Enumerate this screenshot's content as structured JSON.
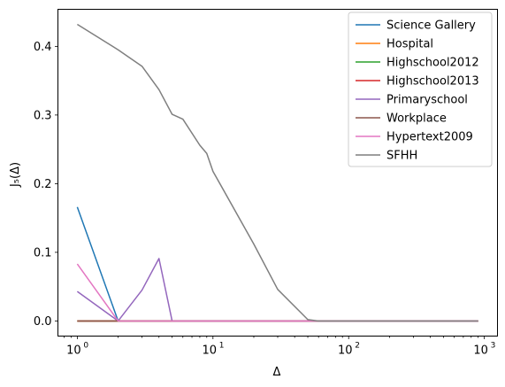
{
  "chart_data": {
    "type": "line",
    "xscale": "log",
    "xlim": [
      0.72,
      1250
    ],
    "ylim": [
      -0.022,
      0.454
    ],
    "xlabel": "Δ",
    "ylabel": "J₅(Δ)",
    "legend_position": "top-right",
    "grid": false,
    "x_ticks": [
      {
        "value": 1,
        "label": "10",
        "exp": "0"
      },
      {
        "value": 10,
        "label": "10",
        "exp": "1"
      },
      {
        "value": 100,
        "label": "10",
        "exp": "2"
      },
      {
        "value": 1000,
        "label": "10",
        "exp": "3"
      }
    ],
    "y_ticks": [
      {
        "value": 0.0,
        "label": "0.0"
      },
      {
        "value": 0.1,
        "label": "0.1"
      },
      {
        "value": 0.2,
        "label": "0.2"
      },
      {
        "value": 0.3,
        "label": "0.3"
      },
      {
        "value": 0.4,
        "label": "0.4"
      }
    ],
    "series": [
      {
        "name": "Science Gallery",
        "color": "#1f77b4",
        "x": [
          1,
          2,
          3,
          4,
          5,
          10,
          50,
          100,
          900
        ],
        "y": [
          0.166,
          0.0,
          0.0,
          0.0,
          0.0,
          0.0,
          0.0,
          0.0,
          0.0
        ]
      },
      {
        "name": "Hospital",
        "color": "#ff7f0e",
        "x": [
          1,
          2,
          5,
          10,
          100,
          900
        ],
        "y": [
          0.0,
          0.0,
          0.0,
          0.0,
          0.0,
          0.0
        ]
      },
      {
        "name": "Highschool2012",
        "color": "#2ca02c",
        "x": [
          1,
          2,
          5,
          10,
          100,
          900
        ],
        "y": [
          0.0,
          0.0,
          0.0,
          0.0,
          0.0,
          0.0
        ]
      },
      {
        "name": "Highschool2013",
        "color": "#d62728",
        "x": [
          1,
          2,
          5,
          10,
          100,
          900
        ],
        "y": [
          0.0,
          0.0,
          0.0,
          0.0,
          0.0,
          0.0
        ]
      },
      {
        "name": "Primaryschool",
        "color": "#9467bd",
        "x": [
          1,
          2,
          3,
          4,
          5,
          10,
          100,
          900
        ],
        "y": [
          0.043,
          0.0,
          0.045,
          0.091,
          0.0,
          0.0,
          0.0,
          0.0
        ]
      },
      {
        "name": "Workplace",
        "color": "#8c564b",
        "x": [
          1,
          2,
          5,
          10,
          100,
          900
        ],
        "y": [
          0.0,
          0.0,
          0.0,
          0.0,
          0.0,
          0.0
        ]
      },
      {
        "name": "Hypertext2009",
        "color": "#e377c2",
        "x": [
          1,
          2,
          5,
          10,
          100,
          900
        ],
        "y": [
          0.083,
          0.0,
          0.0,
          0.0,
          0.0,
          0.0
        ]
      },
      {
        "name": "SFHH",
        "color": "#7f7f7f",
        "x": [
          1,
          2,
          3,
          4,
          5,
          6,
          8,
          9,
          10,
          20,
          30,
          50,
          60,
          100,
          900
        ],
        "y": [
          0.432,
          0.395,
          0.371,
          0.337,
          0.301,
          0.294,
          0.256,
          0.244,
          0.218,
          0.112,
          0.046,
          0.002,
          0.0,
          0.0,
          0.0
        ]
      }
    ]
  }
}
